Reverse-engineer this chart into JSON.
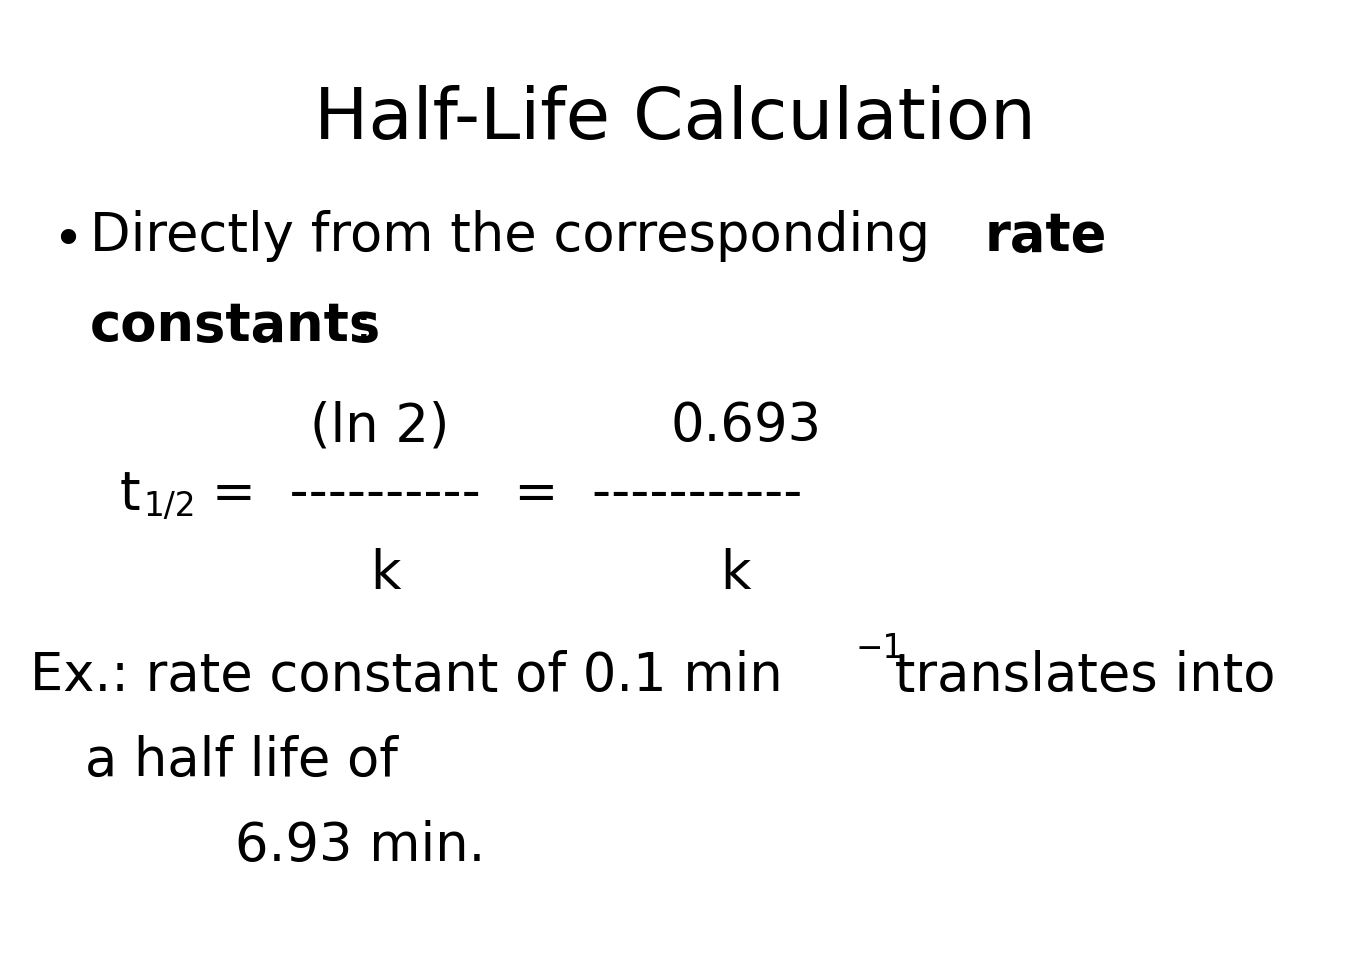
{
  "title": "Half-Life Calculation",
  "title_fontsize": 52,
  "background_color": "#ffffff",
  "text_color": "#000000",
  "fig_width": 13.49,
  "fig_height": 9.68,
  "main_fontsize": 38,
  "dpi": 100
}
